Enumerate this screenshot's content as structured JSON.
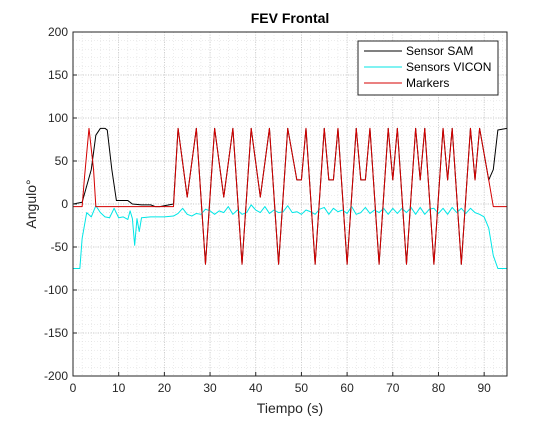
{
  "chart_data": {
    "type": "line",
    "title": "FEV Frontal",
    "xlabel": "Tiempo (s)",
    "ylabel": "Angulo°",
    "xlim": [
      0,
      95
    ],
    "ylim": [
      -200,
      200
    ],
    "xticks": [
      0,
      10,
      20,
      30,
      40,
      50,
      60,
      70,
      80,
      90
    ],
    "yticks": [
      -200,
      -150,
      -100,
      -50,
      0,
      50,
      100,
      150,
      200
    ],
    "grid": "on (major + minor, dotted)",
    "legend_position": "top-right",
    "series": [
      {
        "name": "Sensor SAM",
        "color": "#000000",
        "points": [
          [
            0,
            0
          ],
          [
            2,
            2
          ],
          [
            4,
            40
          ],
          [
            5,
            80
          ],
          [
            6,
            88
          ],
          [
            7,
            88
          ],
          [
            7.5,
            86
          ],
          [
            8.5,
            40
          ],
          [
            9.5,
            4
          ],
          [
            12,
            4
          ],
          [
            13,
            0
          ],
          [
            15,
            -1
          ],
          [
            17,
            -1
          ],
          [
            18,
            -3
          ],
          [
            19,
            -3
          ],
          [
            20,
            -2
          ],
          [
            22,
            0
          ],
          [
            23,
            88
          ],
          [
            25,
            8
          ],
          [
            27,
            88
          ],
          [
            29,
            -70
          ],
          [
            31,
            88
          ],
          [
            33,
            8
          ],
          [
            35,
            88
          ],
          [
            37,
            -70
          ],
          [
            39,
            88
          ],
          [
            41,
            8
          ],
          [
            43,
            88
          ],
          [
            45,
            -70
          ],
          [
            47,
            88
          ],
          [
            49,
            28
          ],
          [
            50,
            28
          ],
          [
            51,
            88
          ],
          [
            53,
            -70
          ],
          [
            55,
            88
          ],
          [
            56,
            28
          ],
          [
            57,
            28
          ],
          [
            58,
            88
          ],
          [
            60,
            -70
          ],
          [
            62,
            88
          ],
          [
            63,
            28
          ],
          [
            64,
            28
          ],
          [
            65,
            88
          ],
          [
            67,
            -70
          ],
          [
            69,
            88
          ],
          [
            70,
            28
          ],
          [
            71,
            88
          ],
          [
            73,
            -70
          ],
          [
            75,
            88
          ],
          [
            76,
            28
          ],
          [
            77,
            88
          ],
          [
            79,
            -70
          ],
          [
            81,
            88
          ],
          [
            82,
            28
          ],
          [
            83,
            88
          ],
          [
            85,
            -70
          ],
          [
            87,
            88
          ],
          [
            88,
            28
          ],
          [
            89,
            88
          ],
          [
            91,
            28
          ],
          [
            92,
            40
          ],
          [
            93,
            86
          ],
          [
            95,
            88
          ]
        ]
      },
      {
        "name": "Sensors VICON",
        "color": "#00e6e6",
        "points": [
          [
            0,
            -75
          ],
          [
            1.5,
            -75
          ],
          [
            2,
            -40
          ],
          [
            3,
            -10
          ],
          [
            4,
            -15
          ],
          [
            5,
            -2
          ],
          [
            6,
            -10
          ],
          [
            7,
            -15
          ],
          [
            8,
            -16
          ],
          [
            9,
            -5
          ],
          [
            10,
            -16
          ],
          [
            11,
            -15
          ],
          [
            12,
            -18
          ],
          [
            12.5,
            -8
          ],
          [
            13,
            -17
          ],
          [
            13.5,
            -48
          ],
          [
            14,
            -17
          ],
          [
            14.5,
            -32
          ],
          [
            15,
            -16
          ],
          [
            17,
            -15
          ],
          [
            20,
            -15
          ],
          [
            22,
            -14
          ],
          [
            23,
            -11
          ],
          [
            24,
            -5
          ],
          [
            25,
            -12
          ],
          [
            26,
            -14
          ],
          [
            27,
            -11
          ],
          [
            28,
            -12
          ],
          [
            29,
            -6
          ],
          [
            30,
            -8
          ],
          [
            31,
            -12
          ],
          [
            32,
            -8
          ],
          [
            33,
            -10
          ],
          [
            34,
            -3
          ],
          [
            35,
            -12
          ],
          [
            36,
            -7
          ],
          [
            37,
            -12
          ],
          [
            38,
            -10
          ],
          [
            39,
            -1
          ],
          [
            40,
            -7
          ],
          [
            41,
            -10
          ],
          [
            42,
            -3
          ],
          [
            43,
            -11
          ],
          [
            44,
            -7
          ],
          [
            45,
            -10
          ],
          [
            46,
            -9
          ],
          [
            47,
            -2
          ],
          [
            48,
            -10
          ],
          [
            49,
            -9
          ],
          [
            50,
            -12
          ],
          [
            51,
            -7
          ],
          [
            52,
            -9
          ],
          [
            53,
            -12
          ],
          [
            54,
            -6
          ],
          [
            55,
            -4
          ],
          [
            56,
            -12
          ],
          [
            57,
            -5
          ],
          [
            58,
            -9
          ],
          [
            59,
            -7
          ],
          [
            60,
            -11
          ],
          [
            61,
            -3
          ],
          [
            62,
            -12
          ],
          [
            63,
            -10
          ],
          [
            64,
            -4
          ],
          [
            65,
            -11
          ],
          [
            66,
            -7
          ],
          [
            67,
            -10
          ],
          [
            68,
            -5
          ],
          [
            69,
            -12
          ],
          [
            70,
            -5
          ],
          [
            71,
            -11
          ],
          [
            72,
            -5
          ],
          [
            73,
            -10
          ],
          [
            74,
            -4
          ],
          [
            75,
            -12
          ],
          [
            76,
            -4
          ],
          [
            77,
            -12
          ],
          [
            78,
            -6
          ],
          [
            79,
            -5
          ],
          [
            80,
            -11
          ],
          [
            81,
            -5
          ],
          [
            82,
            -12
          ],
          [
            83,
            -4
          ],
          [
            84,
            -10
          ],
          [
            85,
            -5
          ],
          [
            86,
            -11
          ],
          [
            87,
            -5
          ],
          [
            88,
            -10
          ],
          [
            89,
            -12
          ],
          [
            90,
            -15
          ],
          [
            91,
            -28
          ],
          [
            92,
            -60
          ],
          [
            93,
            -75
          ],
          [
            95,
            -75
          ]
        ]
      },
      {
        "name": "Markers",
        "color": "#d40000",
        "points": [
          [
            0,
            -3
          ],
          [
            2,
            -3
          ],
          [
            2.5,
            30
          ],
          [
            3.5,
            88
          ],
          [
            4.5,
            40
          ],
          [
            5,
            -3
          ],
          [
            22,
            -3
          ],
          [
            23,
            88
          ],
          [
            25,
            8
          ],
          [
            27,
            88
          ],
          [
            29,
            -70
          ],
          [
            31,
            88
          ],
          [
            33,
            8
          ],
          [
            35,
            88
          ],
          [
            37,
            -70
          ],
          [
            39,
            88
          ],
          [
            41,
            8
          ],
          [
            43,
            88
          ],
          [
            45,
            -70
          ],
          [
            47,
            88
          ],
          [
            49,
            28
          ],
          [
            50,
            28
          ],
          [
            51,
            88
          ],
          [
            53,
            -70
          ],
          [
            55,
            88
          ],
          [
            56,
            28
          ],
          [
            57,
            28
          ],
          [
            58,
            88
          ],
          [
            60,
            -70
          ],
          [
            62,
            88
          ],
          [
            63,
            28
          ],
          [
            64,
            28
          ],
          [
            65,
            88
          ],
          [
            67,
            -70
          ],
          [
            69,
            88
          ],
          [
            70,
            28
          ],
          [
            71,
            88
          ],
          [
            73,
            -70
          ],
          [
            75,
            88
          ],
          [
            76,
            28
          ],
          [
            77,
            88
          ],
          [
            79,
            -70
          ],
          [
            81,
            88
          ],
          [
            82,
            28
          ],
          [
            83,
            88
          ],
          [
            85,
            -70
          ],
          [
            87,
            88
          ],
          [
            88,
            28
          ],
          [
            89,
            88
          ],
          [
            91,
            28
          ],
          [
            92,
            -3
          ],
          [
            95,
            -3
          ]
        ]
      }
    ]
  }
}
